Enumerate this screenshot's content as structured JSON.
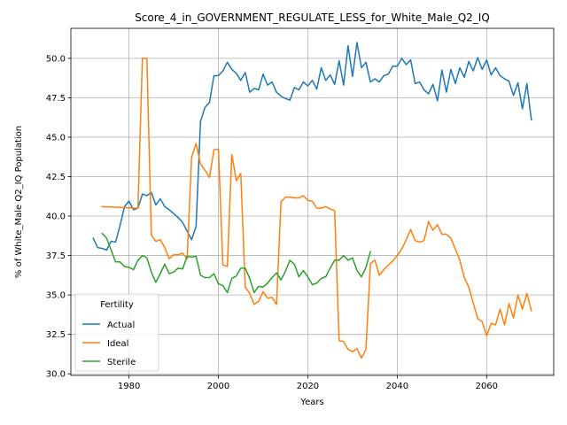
{
  "chart_data": {
    "type": "line",
    "title": "Score_4_in_GOVERNMENT_REGULATE_LESS_for_White_Male_Q2_IQ",
    "xlabel": "Years",
    "ylabel": "% of White_Male Q2_IQ Population",
    "xlim": [
      1967,
      2075
    ],
    "ylim": [
      29.9,
      51.9
    ],
    "xticks": [
      1980,
      2000,
      2020,
      2040,
      2060
    ],
    "yticks": [
      30.0,
      32.5,
      35.0,
      37.5,
      40.0,
      42.5,
      45.0,
      47.5,
      50.0
    ],
    "grid": true,
    "legend": {
      "title": "Fertility",
      "placement": "lower-left"
    },
    "series": [
      {
        "name": "Actual",
        "color": "#1f77b4",
        "x": [
          1972,
          1973,
          1974,
          1975,
          1976,
          1977,
          1978,
          1979,
          1980,
          1981,
          1982,
          1983,
          1984,
          1985,
          1986,
          1987,
          1988,
          1989,
          1990,
          1991,
          1992,
          1993,
          1994,
          1995,
          1996,
          1997,
          1998,
          1999,
          2000,
          2001,
          2002,
          2003,
          2004,
          2005,
          2006,
          2007,
          2008,
          2009,
          2010,
          2011,
          2012,
          2013,
          2014,
          2015,
          2016,
          2017,
          2018,
          2019,
          2020,
          2021,
          2022,
          2023,
          2024,
          2025,
          2026,
          2027,
          2028,
          2029,
          2030,
          2031,
          2032,
          2033,
          2034,
          2035,
          2036,
          2037,
          2038,
          2039,
          2040,
          2041,
          2042,
          2043,
          2044,
          2045,
          2046,
          2047,
          2048,
          2049,
          2050,
          2051,
          2052,
          2053,
          2054,
          2055,
          2056,
          2057,
          2058,
          2059,
          2060,
          2061,
          2062,
          2063,
          2064,
          2065,
          2066,
          2067,
          2068,
          2069,
          2070
        ],
        "values": [
          38.6,
          38.0,
          37.95,
          37.85,
          38.4,
          38.35,
          39.4,
          40.6,
          40.95,
          40.4,
          40.5,
          41.4,
          41.3,
          41.5,
          40.7,
          41.1,
          40.6,
          40.4,
          40.15,
          39.9,
          39.6,
          39.05,
          38.5,
          39.35,
          46.0,
          46.9,
          47.2,
          48.9,
          48.9,
          49.2,
          49.75,
          49.3,
          49.05,
          48.6,
          49.1,
          47.85,
          48.1,
          48.0,
          49.0,
          48.3,
          48.5,
          47.85,
          47.6,
          47.45,
          47.35,
          48.15,
          48.0,
          48.5,
          48.25,
          48.6,
          48.05,
          49.4,
          48.6,
          48.95,
          48.35,
          49.85,
          48.3,
          50.8,
          48.85,
          51.0,
          49.4,
          49.75,
          48.5,
          48.7,
          48.5,
          48.9,
          49.0,
          49.5,
          49.5,
          50.0,
          49.6,
          49.9,
          48.4,
          48.5,
          48.0,
          47.75,
          48.35,
          47.3,
          49.25,
          47.85,
          49.3,
          48.4,
          49.4,
          48.8,
          49.8,
          49.2,
          50.05,
          49.3,
          49.9,
          48.95,
          49.4,
          48.9,
          48.7,
          48.55,
          47.65,
          48.45,
          46.8,
          48.4,
          46.1
        ]
      },
      {
        "name": "Ideal",
        "color": "#ff7f0e",
        "x": [
          1974,
          1982,
          1983,
          1984,
          1985,
          1986,
          1987,
          1988,
          1989,
          1990,
          1991,
          1992,
          1993,
          1994,
          1995,
          1996,
          1997,
          1998,
          1999,
          2000,
          2001,
          2002,
          2003,
          2004,
          2005,
          2006,
          2007,
          2008,
          2009,
          2010,
          2011,
          2012,
          2013,
          2014,
          2015,
          2016,
          2017,
          2018,
          2019,
          2020,
          2021,
          2022,
          2023,
          2024,
          2025,
          2026,
          2027,
          2028,
          2029,
          2030,
          2031,
          2032,
          2033,
          2034,
          2035,
          2036,
          2037,
          2038,
          2039,
          2040,
          2041,
          2042,
          2043,
          2044,
          2045,
          2046,
          2047,
          2048,
          2049,
          2050,
          2051,
          2052,
          2053,
          2054,
          2055,
          2056,
          2057,
          2058,
          2059,
          2060,
          2061,
          2062,
          2063,
          2064,
          2065,
          2066,
          2067,
          2068,
          2069,
          2070
        ],
        "values": [
          40.6,
          40.5,
          50.0,
          50.0,
          38.8,
          38.4,
          38.5,
          38.0,
          37.3,
          37.55,
          37.55,
          37.65,
          37.3,
          43.7,
          44.6,
          43.3,
          42.9,
          42.45,
          44.2,
          44.25,
          36.9,
          36.8,
          43.9,
          42.25,
          42.7,
          35.5,
          35.1,
          34.4,
          34.6,
          35.2,
          34.8,
          34.85,
          34.4,
          40.9,
          41.2,
          41.2,
          41.15,
          41.15,
          41.3,
          41.0,
          40.95,
          40.5,
          40.5,
          40.6,
          40.45,
          40.35,
          32.1,
          32.05,
          31.55,
          31.4,
          31.6,
          31.0,
          31.55,
          37.0,
          37.2,
          36.25,
          36.6,
          36.9,
          37.15,
          37.5,
          37.9,
          38.5,
          39.15,
          38.45,
          38.35,
          38.45,
          39.65,
          39.1,
          39.45,
          38.85,
          38.85,
          38.6,
          37.9,
          37.2,
          36.1,
          35.5,
          34.5,
          33.5,
          33.3,
          32.4,
          33.2,
          33.1,
          34.1,
          33.1,
          34.45,
          33.55,
          35.0,
          34.1,
          35.1,
          34.0
        ]
      },
      {
        "name": "Sterile",
        "color": "#2ca02c",
        "x": [
          1974,
          1975,
          1976,
          1977,
          1978,
          1979,
          1980,
          1981,
          1982,
          1983,
          1984,
          1985,
          1986,
          1987,
          1988,
          1989,
          1990,
          1991,
          1992,
          1993,
          1994,
          1995,
          1996,
          1997,
          1998,
          1999,
          2000,
          2001,
          2002,
          2003,
          2004,
          2005,
          2006,
          2007,
          2008,
          2009,
          2010,
          2011,
          2012,
          2013,
          2014,
          2015,
          2016,
          2017,
          2018,
          2019,
          2020,
          2021,
          2022,
          2023,
          2024,
          2025,
          2026,
          2027,
          2028,
          2029,
          2030,
          2031,
          2032,
          2033,
          2034
        ],
        "values": [
          38.9,
          38.6,
          37.85,
          37.1,
          37.1,
          36.8,
          36.75,
          36.6,
          37.2,
          37.5,
          37.35,
          36.45,
          35.8,
          36.35,
          36.95,
          36.35,
          36.45,
          36.7,
          36.65,
          37.45,
          37.4,
          37.45,
          36.25,
          36.1,
          36.1,
          36.35,
          35.7,
          35.6,
          35.15,
          36.05,
          36.2,
          36.7,
          36.7,
          36.05,
          35.15,
          35.55,
          35.5,
          35.75,
          36.1,
          36.4,
          35.95,
          36.5,
          37.2,
          36.95,
          36.15,
          36.55,
          36.15,
          35.65,
          35.75,
          36.05,
          36.15,
          36.7,
          37.2,
          37.2,
          37.5,
          37.2,
          37.35,
          36.55,
          36.15,
          36.75,
          37.75
        ]
      }
    ]
  }
}
